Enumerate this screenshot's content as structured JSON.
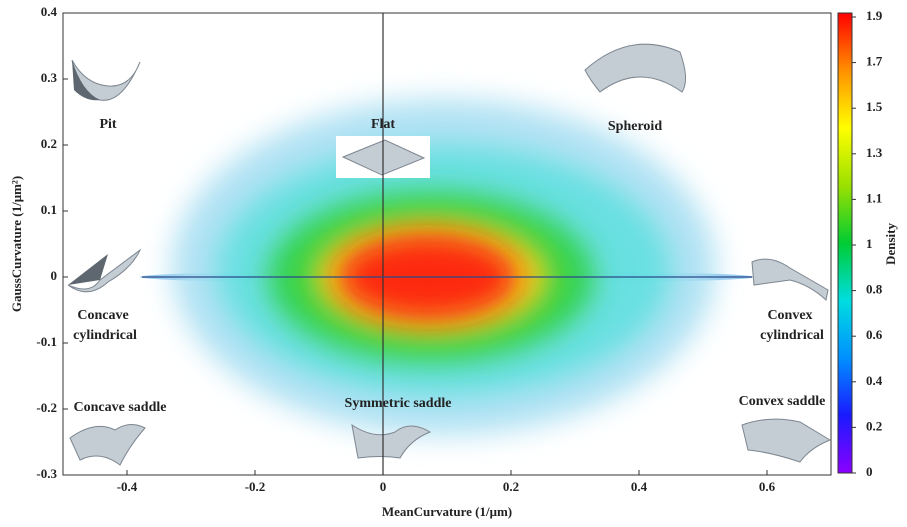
{
  "chart_data": {
    "type": "density",
    "xlabel": "MeanCurvature (1/μm)",
    "ylabel": "GaussCurvature (1/μm²)",
    "colorbar_label": "Density",
    "xlim": [
      -0.5,
      0.7
    ],
    "xticks": [
      -0.4,
      -0.2,
      0,
      0.2,
      0.4,
      0.6
    ],
    "ylim": [
      -0.3,
      0.4
    ],
    "yticks": [
      0.4,
      0.3,
      0.2,
      0.1,
      0,
      -0.1,
      -0.2,
      -0.3
    ],
    "colorbar_ticks": [
      0,
      0.2,
      0.4,
      0.6,
      0.8,
      1,
      1.1,
      1.3,
      1.5,
      1.7,
      1.9
    ],
    "colorscale": [
      "#8b00ff",
      "#1a1aff",
      "#0090ff",
      "#00dde0",
      "#00cc33",
      "#9be000",
      "#ffff00",
      "#ff9000",
      "#ff0000"
    ],
    "density_regions": [
      {
        "level": 0.6,
        "color": "#8fc6ee",
        "x_range": [
          -0.38,
          0.58
        ],
        "y_range": [
          -0.01,
          0.01
        ]
      },
      {
        "level": 0.6,
        "color": "#a9dff2",
        "x_range": [
          -0.33,
          0.52
        ],
        "y_range": [
          -0.24,
          0.27
        ]
      },
      {
        "level": 0.8,
        "color": "#5fe0e0",
        "x_range": [
          -0.26,
          0.45
        ],
        "y_range": [
          -0.18,
          0.2
        ]
      },
      {
        "level": 1.1,
        "color": "#2ed23c",
        "x_range": [
          -0.18,
          0.33
        ],
        "y_range": [
          -0.13,
          0.13
        ]
      },
      {
        "level": 1.5,
        "color": "#ffd21a",
        "x_range": [
          -0.11,
          0.26
        ],
        "y_range": [
          -0.09,
          0.09
        ]
      },
      {
        "level": 1.9,
        "color": "#ff1a0a",
        "x_range": [
          -0.07,
          0.21
        ],
        "y_range": [
          -0.065,
          0.065
        ]
      }
    ],
    "annotations": [
      {
        "label": [
          "Pit"
        ]
      },
      {
        "label": [
          "Spheroid"
        ]
      },
      {
        "label": [
          "Flat"
        ]
      },
      {
        "label": [
          "Concave",
          "cylindrical"
        ]
      },
      {
        "label": [
          "Convex",
          "cylindrical"
        ]
      },
      {
        "label": [
          "Concave saddle"
        ]
      },
      {
        "label": [
          "Symmetric saddle"
        ]
      },
      {
        "label": [
          "Convex saddle"
        ]
      }
    ]
  }
}
